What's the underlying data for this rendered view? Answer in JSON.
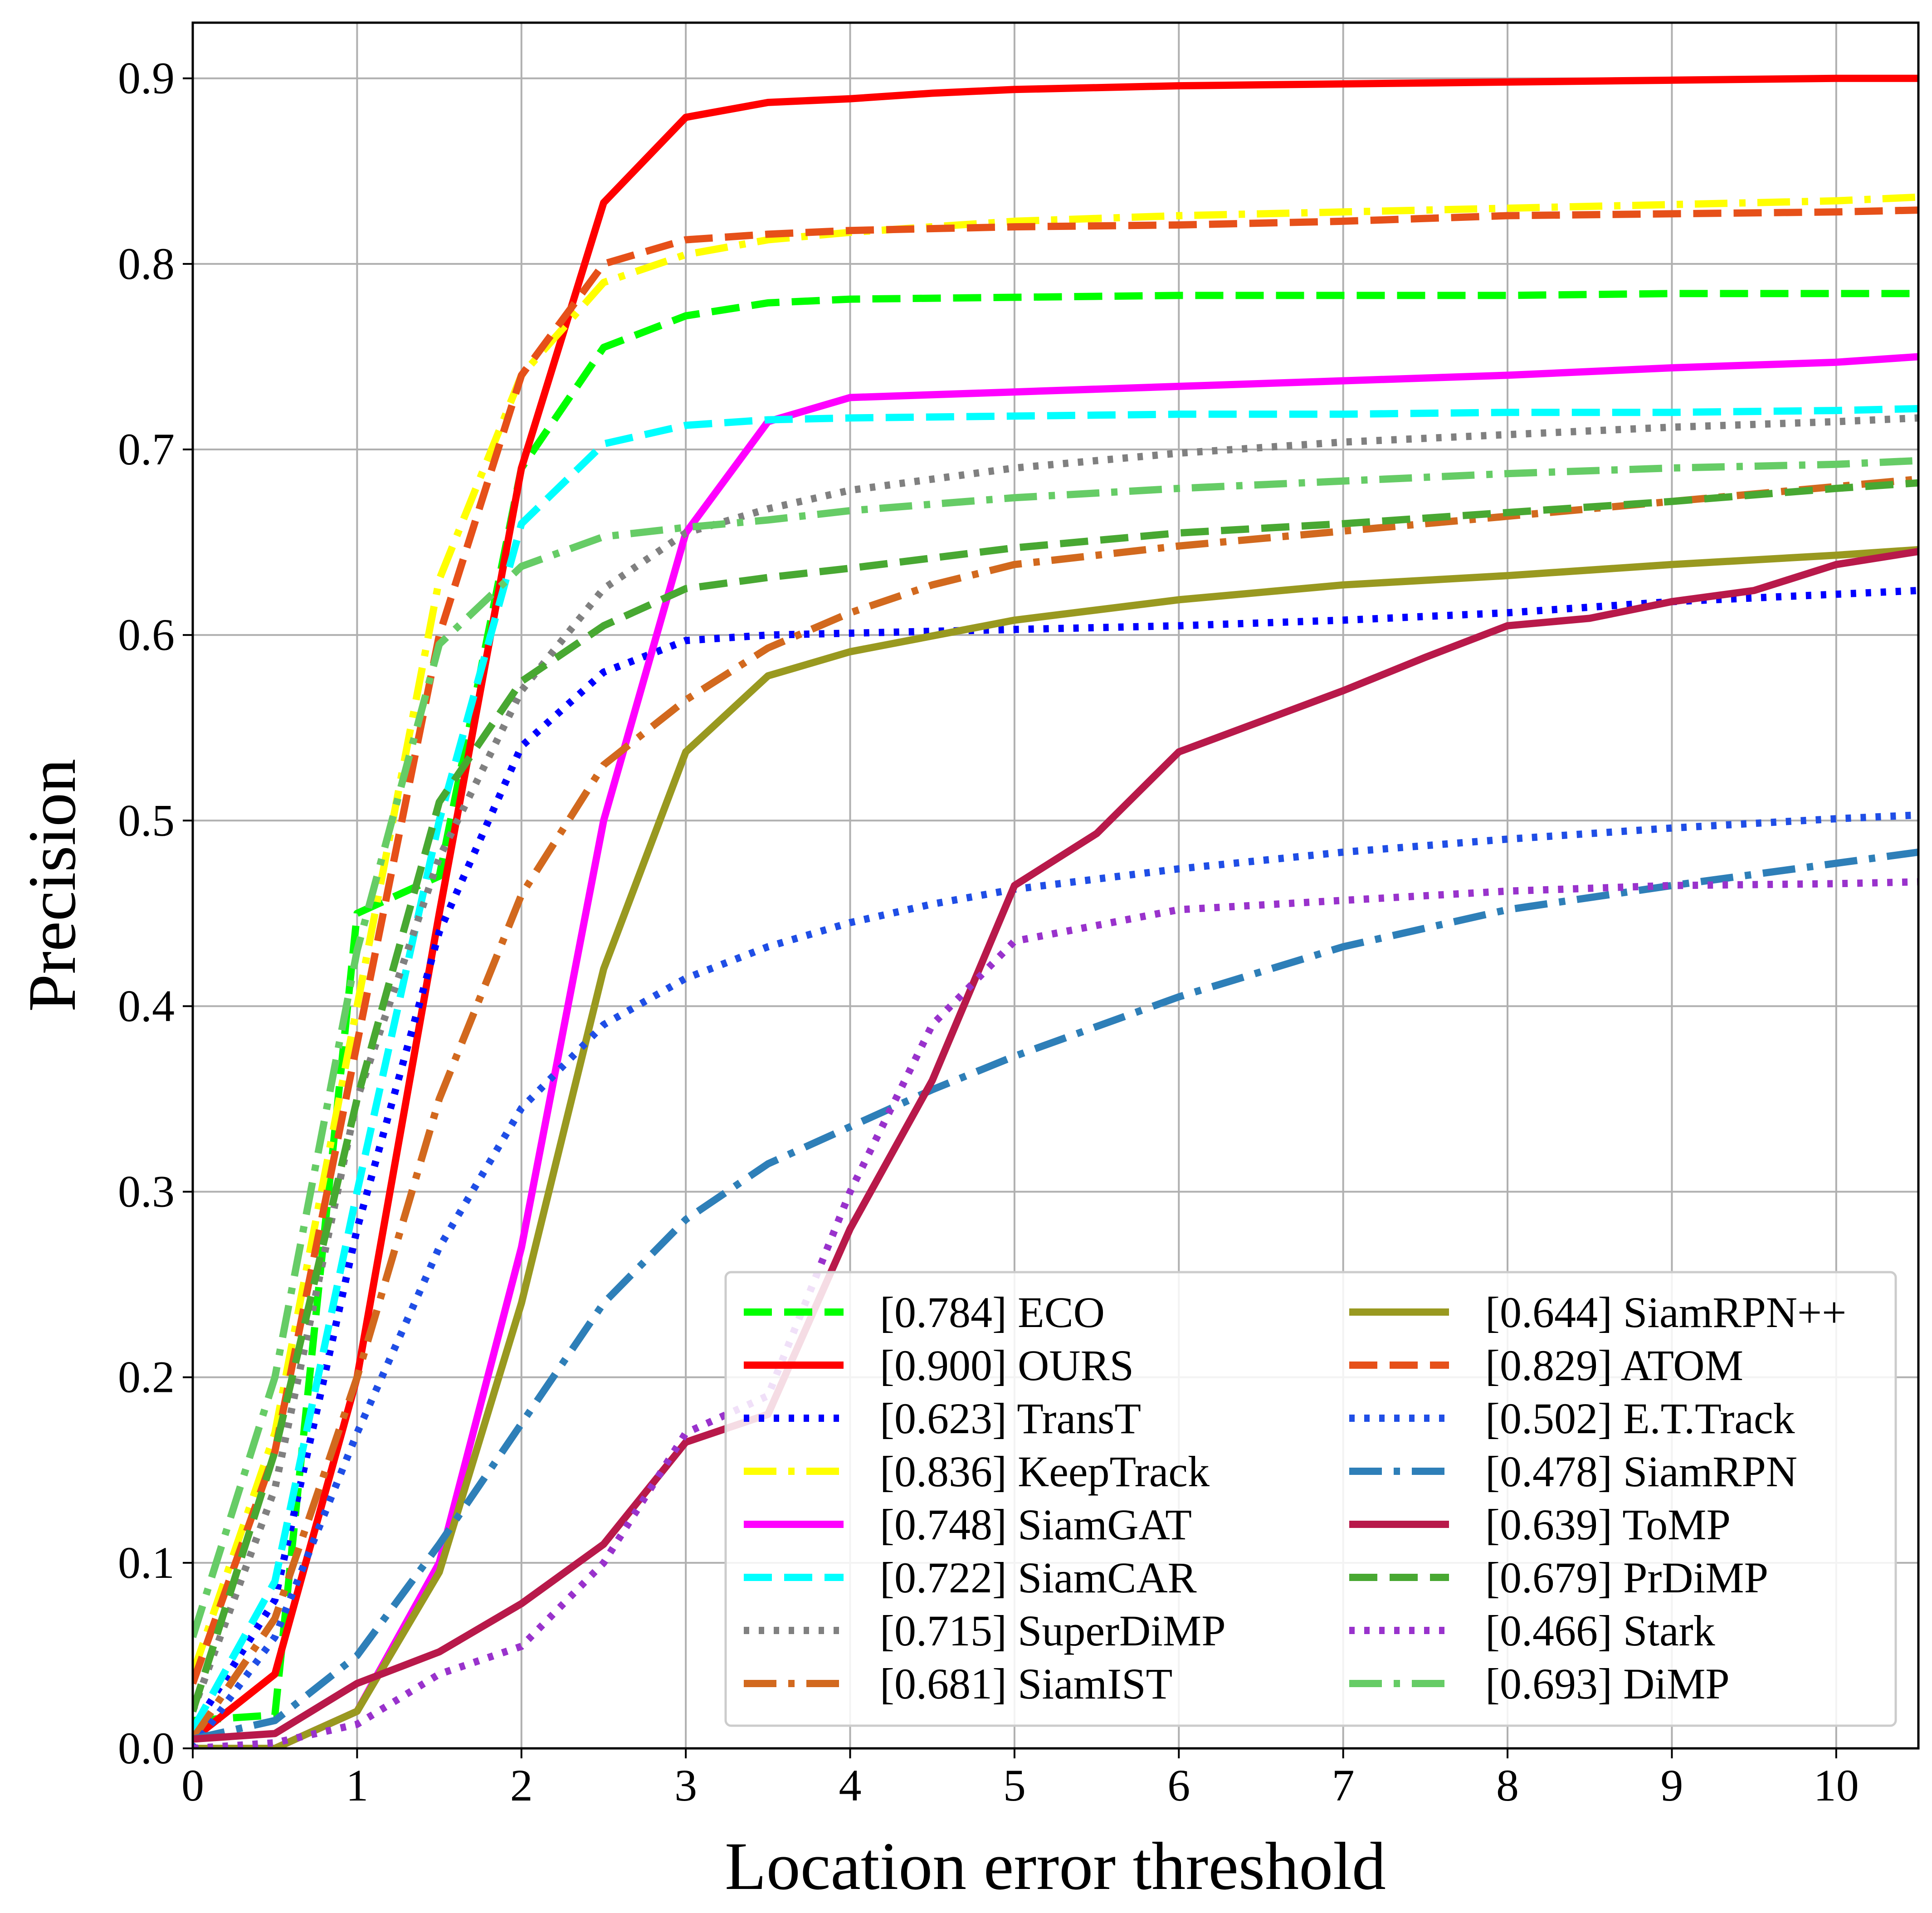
{
  "chart_data": {
    "type": "line",
    "title": "",
    "xlabel": "Location error threshold",
    "ylabel": "Precision",
    "xlim": [
      0,
      10.5
    ],
    "ylim": [
      0,
      0.93
    ],
    "xticks": [
      0,
      1,
      2,
      3,
      4,
      5,
      6,
      7,
      8,
      9,
      10
    ],
    "xtick_labels": [
      "0",
      "1",
      "2",
      "3",
      "4",
      "5",
      "6",
      "7",
      "8",
      "9",
      "10"
    ],
    "yticks": [
      0,
      0.1,
      0.2,
      0.3,
      0.4,
      0.5,
      0.6,
      0.7,
      0.8,
      0.9
    ],
    "ytick_labels": [
      "0.0",
      "0.1",
      "0.2",
      "0.3",
      "0.4",
      "0.5",
      "0.6",
      "0.7",
      "0.8",
      "0.9"
    ],
    "grid": true,
    "legend_position": "lower-right",
    "legend_columns": 2,
    "series": [
      {
        "name": "[0.784] ECO",
        "color": "#00ff00",
        "style": "dashed",
        "x": [
          0,
          0.5,
          1,
          1.5,
          2,
          2.5,
          3,
          3.5,
          4,
          5,
          6,
          7,
          8,
          9,
          10,
          10.5
        ],
        "y": [
          0.015,
          0.018,
          0.45,
          0.47,
          0.69,
          0.755,
          0.772,
          0.779,
          0.781,
          0.782,
          0.783,
          0.783,
          0.783,
          0.784,
          0.784,
          0.784
        ]
      },
      {
        "name": "[0.900] OURS",
        "color": "#ff0000",
        "style": "solid",
        "x": [
          0,
          0.5,
          1,
          1.5,
          2,
          2.5,
          3,
          3.5,
          4,
          4.5,
          5,
          6,
          7,
          8,
          9,
          10,
          10.5
        ],
        "y": [
          0.005,
          0.04,
          0.2,
          0.45,
          0.69,
          0.833,
          0.879,
          0.887,
          0.889,
          0.892,
          0.894,
          0.896,
          0.897,
          0.898,
          0.899,
          0.9,
          0.9
        ]
      },
      {
        "name": "[0.623] TransT",
        "color": "#0000ff",
        "style": "dotted",
        "x": [
          0,
          0.5,
          1,
          1.5,
          2,
          2.5,
          3,
          3.5,
          4,
          5,
          6,
          7,
          8,
          9,
          10,
          10.5
        ],
        "y": [
          0.01,
          0.08,
          0.28,
          0.44,
          0.54,
          0.58,
          0.597,
          0.6,
          0.601,
          0.603,
          0.605,
          0.608,
          0.612,
          0.618,
          0.622,
          0.624
        ]
      },
      {
        "name": "[0.836] KeepTrack",
        "color": "#ffff00",
        "style": "dashdot",
        "x": [
          0,
          0.5,
          1,
          1.5,
          2,
          2.5,
          3,
          3.5,
          4,
          5,
          6,
          7,
          8,
          9,
          10,
          10.5
        ],
        "y": [
          0.04,
          0.17,
          0.4,
          0.63,
          0.74,
          0.79,
          0.805,
          0.813,
          0.817,
          0.823,
          0.826,
          0.828,
          0.83,
          0.832,
          0.834,
          0.836
        ]
      },
      {
        "name": "[0.748] SiamGAT",
        "color": "#ff00ff",
        "style": "solid",
        "x": [
          0,
          0.5,
          1,
          1.5,
          2,
          2.5,
          3,
          3.5,
          4,
          5,
          6,
          7,
          8,
          9,
          10,
          10.5
        ],
        "y": [
          0,
          0,
          0.02,
          0.1,
          0.27,
          0.5,
          0.655,
          0.715,
          0.728,
          0.731,
          0.734,
          0.737,
          0.74,
          0.744,
          0.747,
          0.75
        ]
      },
      {
        "name": "[0.722] SiamCAR",
        "color": "#00ffff",
        "style": "dashed",
        "x": [
          0,
          0.5,
          1,
          1.5,
          2,
          2.5,
          3,
          3.5,
          4,
          5,
          6,
          7,
          8,
          9,
          10,
          10.5
        ],
        "y": [
          0.01,
          0.09,
          0.3,
          0.5,
          0.66,
          0.703,
          0.713,
          0.716,
          0.717,
          0.718,
          0.719,
          0.719,
          0.72,
          0.72,
          0.721,
          0.722
        ]
      },
      {
        "name": "[0.715] SuperDiMP",
        "color": "#808080",
        "style": "dotted",
        "x": [
          0,
          0.5,
          1,
          1.5,
          2,
          2.5,
          3,
          3.5,
          4,
          5,
          6,
          7,
          8,
          9,
          10,
          10.5
        ],
        "y": [
          0.02,
          0.14,
          0.35,
          0.48,
          0.57,
          0.625,
          0.655,
          0.668,
          0.678,
          0.69,
          0.698,
          0.704,
          0.708,
          0.712,
          0.715,
          0.717
        ]
      },
      {
        "name": "[0.681] SiamIST",
        "color": "#d2691e",
        "style": "dashdot",
        "x": [
          0,
          0.5,
          1,
          1.5,
          2,
          2.5,
          3,
          3.5,
          4,
          4.5,
          5,
          6,
          7,
          8,
          9,
          10,
          10.5
        ],
        "y": [
          0.005,
          0.07,
          0.2,
          0.35,
          0.46,
          0.53,
          0.565,
          0.593,
          0.612,
          0.627,
          0.638,
          0.648,
          0.656,
          0.664,
          0.672,
          0.68,
          0.684
        ]
      },
      {
        "name": "[0.644] SiamRPN++",
        "color": "#999920",
        "style": "solid",
        "x": [
          0,
          0.5,
          1,
          1.5,
          2,
          2.5,
          3,
          3.5,
          4,
          5,
          6,
          7,
          8,
          9,
          10,
          10.5
        ],
        "y": [
          0,
          0,
          0.02,
          0.095,
          0.24,
          0.42,
          0.537,
          0.578,
          0.591,
          0.608,
          0.619,
          0.627,
          0.632,
          0.638,
          0.643,
          0.646
        ]
      },
      {
        "name": "[0.829] ATOM",
        "color": "#e65019",
        "style": "dashed",
        "x": [
          0,
          0.5,
          1,
          1.5,
          2,
          2.5,
          3,
          3.5,
          4,
          5,
          6,
          7,
          8,
          9,
          10,
          10.5
        ],
        "y": [
          0.035,
          0.16,
          0.38,
          0.6,
          0.74,
          0.8,
          0.813,
          0.816,
          0.818,
          0.82,
          0.821,
          0.823,
          0.826,
          0.827,
          0.828,
          0.829
        ]
      },
      {
        "name": "[0.502] E.T.Track",
        "color": "#1f4ee6",
        "style": "dotted",
        "x": [
          0,
          0.5,
          1,
          1.5,
          2,
          2.5,
          3,
          3.5,
          4,
          4.5,
          5,
          6,
          7,
          8,
          9,
          10,
          10.5
        ],
        "y": [
          0,
          0.06,
          0.17,
          0.27,
          0.345,
          0.39,
          0.415,
          0.432,
          0.445,
          0.455,
          0.463,
          0.474,
          0.483,
          0.49,
          0.496,
          0.501,
          0.503
        ]
      },
      {
        "name": "[0.478] SiamRPN",
        "color": "#2e7fb8",
        "style": "dashdot",
        "x": [
          0,
          0.5,
          1,
          1.5,
          2,
          2.5,
          3,
          3.5,
          4,
          4.5,
          5,
          6,
          7,
          8,
          9,
          10,
          10.5
        ],
        "y": [
          0.005,
          0.015,
          0.05,
          0.11,
          0.175,
          0.24,
          0.285,
          0.315,
          0.335,
          0.355,
          0.373,
          0.405,
          0.432,
          0.452,
          0.465,
          0.477,
          0.483
        ]
      },
      {
        "name": "[0.639] ToMP",
        "color": "#b8194a",
        "style": "solid",
        "x": [
          0,
          0.5,
          1,
          1.5,
          2,
          2.5,
          3,
          3.5,
          4,
          4.5,
          5,
          5.5,
          6,
          7,
          7.5,
          8,
          8.5,
          9,
          9.5,
          10,
          10.5
        ],
        "y": [
          0.005,
          0.008,
          0.035,
          0.052,
          0.078,
          0.11,
          0.165,
          0.18,
          0.28,
          0.36,
          0.465,
          0.493,
          0.537,
          0.57,
          0.588,
          0.605,
          0.609,
          0.618,
          0.624,
          0.638,
          0.645
        ]
      },
      {
        "name": "[0.679] PrDiMP",
        "color": "#48a832",
        "style": "dashed",
        "x": [
          0,
          0.5,
          1,
          1.5,
          2,
          2.5,
          3,
          3.5,
          4,
          5,
          6,
          7,
          8,
          9,
          10,
          10.5
        ],
        "y": [
          0.02,
          0.16,
          0.35,
          0.51,
          0.575,
          0.605,
          0.625,
          0.631,
          0.636,
          0.647,
          0.655,
          0.66,
          0.666,
          0.672,
          0.679,
          0.682
        ]
      },
      {
        "name": "[0.466] Stark",
        "color": "#9932cc",
        "style": "dotted",
        "x": [
          0,
          0.5,
          1,
          1.5,
          2,
          2.5,
          3,
          3.5,
          4,
          4.5,
          5,
          6,
          7,
          8,
          9,
          10,
          10.5
        ],
        "y": [
          0,
          0.003,
          0.013,
          0.04,
          0.055,
          0.1,
          0.17,
          0.19,
          0.3,
          0.39,
          0.435,
          0.452,
          0.457,
          0.462,
          0.465,
          0.466,
          0.467
        ]
      },
      {
        "name": "[0.693] DiMP",
        "color": "#66cc66",
        "style": "dashdot",
        "x": [
          0,
          0.5,
          1,
          1.5,
          2,
          2.5,
          3,
          3.5,
          4,
          5,
          6,
          7,
          8,
          9,
          10,
          10.5
        ],
        "y": [
          0.06,
          0.2,
          0.43,
          0.595,
          0.637,
          0.653,
          0.658,
          0.662,
          0.667,
          0.674,
          0.679,
          0.683,
          0.687,
          0.69,
          0.692,
          0.694
        ]
      }
    ]
  }
}
